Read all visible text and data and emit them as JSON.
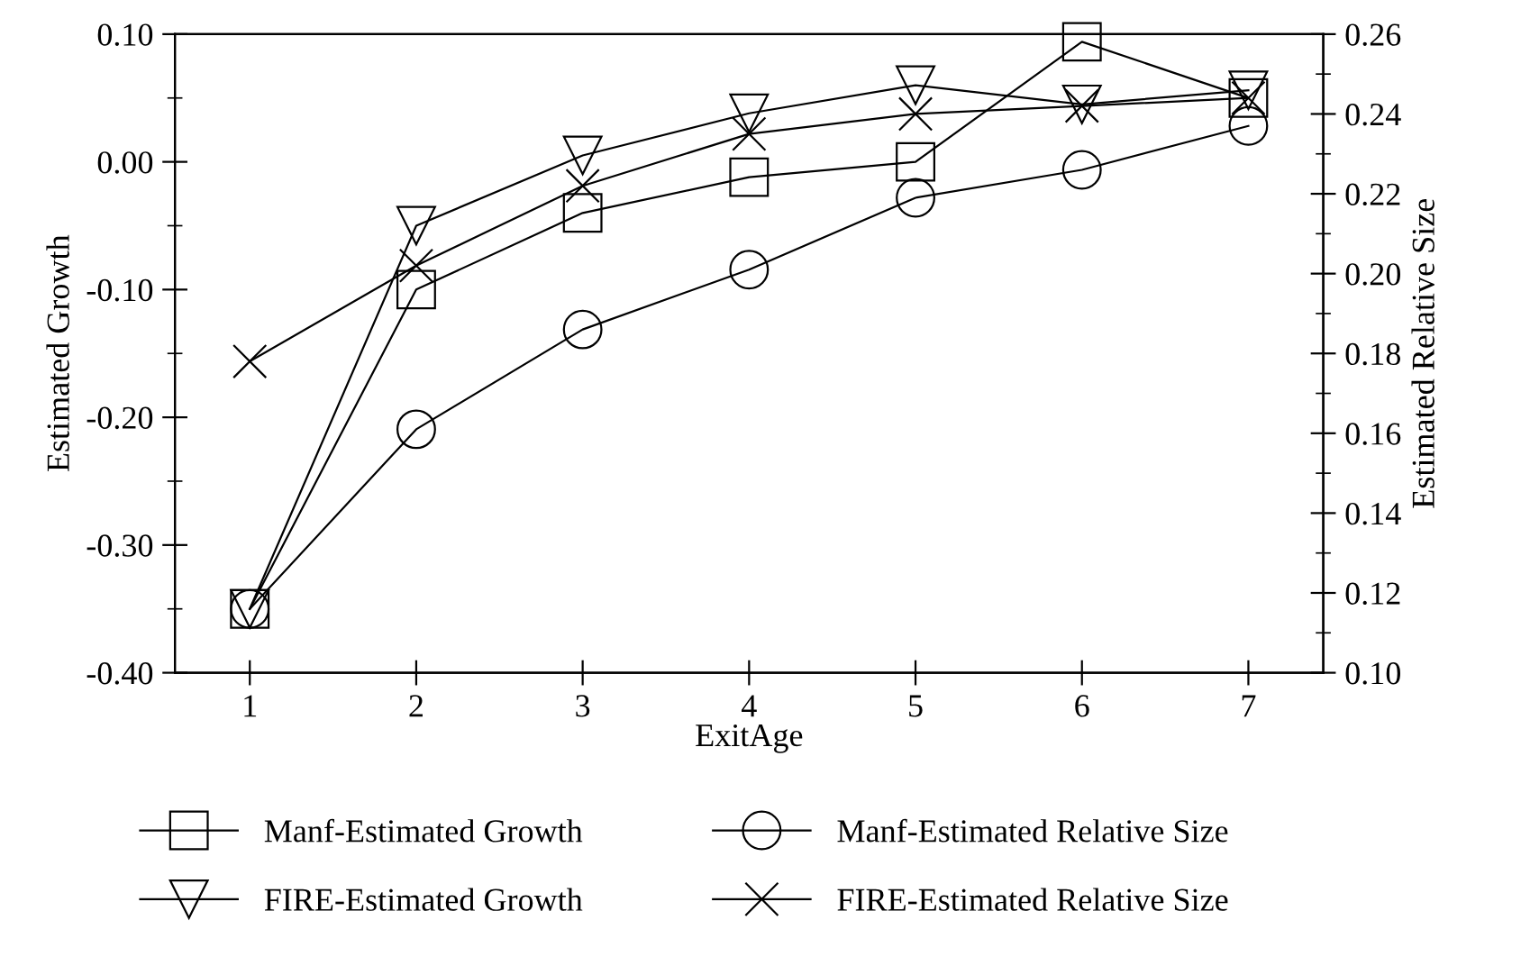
{
  "chart_data": {
    "type": "line",
    "xlabel": "ExitAge",
    "ylabel": "Estimated Growth",
    "y2label": "Estimated Relative Size",
    "x": [
      1,
      2,
      3,
      4,
      5,
      6,
      7
    ],
    "xlim": [
      0.55,
      7.45
    ],
    "xticks": [
      1,
      2,
      3,
      4,
      5,
      6,
      7
    ],
    "ylim": [
      -0.4,
      0.1
    ],
    "yticks": [
      {
        "value": -0.4,
        "label": "-0.40"
      },
      {
        "value": -0.3,
        "label": "-0.30"
      },
      {
        "value": -0.2,
        "label": "-0.20"
      },
      {
        "value": -0.1,
        "label": "-0.10"
      },
      {
        "value": 0,
        "label": "0.00"
      },
      {
        "value": 0.1,
        "label": "0.10"
      }
    ],
    "y2lim": [
      0.1,
      0.26
    ],
    "y2ticks": [
      {
        "value": 0.1,
        "label": "0.10"
      },
      {
        "value": 0.12,
        "label": "0.12"
      },
      {
        "value": 0.14,
        "label": "0.14"
      },
      {
        "value": 0.16,
        "label": "0.16"
      },
      {
        "value": 0.18,
        "label": "0.18"
      },
      {
        "value": 0.2,
        "label": "0.20"
      },
      {
        "value": 0.22,
        "label": "0.22"
      },
      {
        "value": 0.24,
        "label": "0.24"
      },
      {
        "value": 0.26,
        "label": "0.26"
      }
    ],
    "grid": false,
    "legend": "bottom",
    "line_style": "solid",
    "series": [
      {
        "name": "Manf-Estimated Growth",
        "color": "#000000",
        "marker": "square",
        "values": [
          -0.35,
          -0.1,
          -0.04,
          -0.012,
          0.0,
          0.094,
          0.05
        ]
      },
      {
        "name": "Manf-Estimated Relative Size",
        "color": "#000000",
        "marker": "circle",
        "axis": "y2",
        "values": [
          0.116,
          0.161,
          0.186,
          0.201,
          0.219,
          0.226,
          0.237
        ]
      },
      {
        "name": "FIRE-Estimated Growth",
        "color": "#000000",
        "marker": "triangle",
        "values": [
          -0.35,
          -0.05,
          0.005,
          0.038,
          0.06,
          0.045,
          0.056
        ]
      },
      {
        "name": "FIRE-Estimated Relative Size",
        "color": "#000000",
        "marker": "cross",
        "axis": "y2",
        "values": [
          0.178,
          0.202,
          0.222,
          0.235,
          0.24,
          0.242,
          0.244
        ]
      }
    ]
  }
}
